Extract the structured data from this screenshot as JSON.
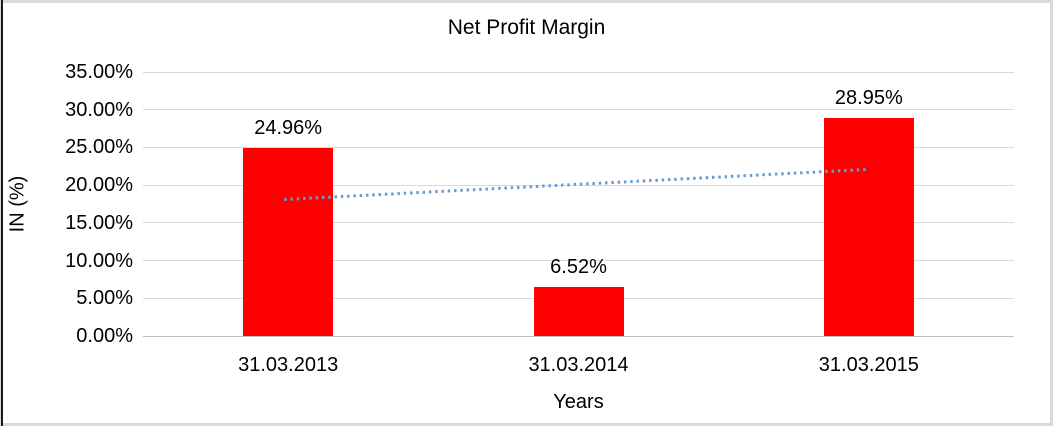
{
  "chart_data": {
    "type": "bar",
    "title": "Net Profit Margin",
    "xlabel": "Years",
    "ylabel": "IN (%)",
    "categories": [
      "31.03.2013",
      "31.03.2014",
      "31.03.2015"
    ],
    "values": [
      24.96,
      6.52,
      28.95
    ],
    "data_labels": [
      "24.96%",
      "6.52%",
      "28.95%"
    ],
    "ylim": [
      0,
      35
    ],
    "ytick_step": 5,
    "ytick_labels": [
      "0.00%",
      "5.00%",
      "10.00%",
      "15.00%",
      "20.00%",
      "25.00%",
      "30.00%",
      "35.00%"
    ],
    "grid": true,
    "legend": "none",
    "trendline": {
      "type": "linear",
      "style": "dotted",
      "start_value": 18.1,
      "end_value": 22.1
    },
    "colors": {
      "bar": "#ff0000",
      "gridline": "#d9d9d9",
      "axis_line": "#bfbfbf",
      "trendline": "#6b9bd2",
      "text": "#000000",
      "frame": "#d9d9d9",
      "left_edge": "#1a1a1a",
      "background": "#ffffff"
    }
  }
}
